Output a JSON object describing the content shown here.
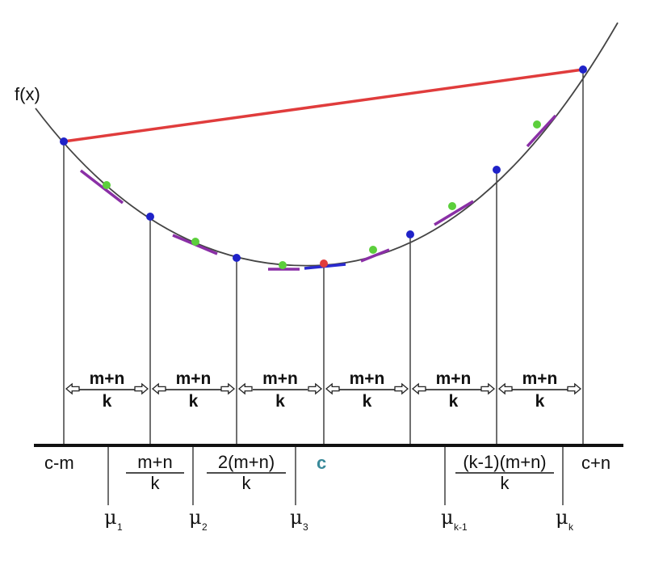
{
  "fx_label": "f(x)",
  "axis_labels": {
    "left": "c-m",
    "right": "c+n",
    "center": "c"
  },
  "axis_fractions": [
    {
      "num": "m+n",
      "den": "k"
    },
    {
      "num": "2(m+n)",
      "den": "k"
    },
    {
      "num": "(k-1)(m+n)",
      "den": "k"
    }
  ],
  "gap_fraction": {
    "num": "m+n",
    "den": "k"
  },
  "mu_labels": [
    {
      "base": "μ",
      "sub": "1"
    },
    {
      "base": "μ",
      "sub": "2"
    },
    {
      "base": "μ",
      "sub": "3"
    },
    {
      "base": "μ",
      "sub": "k-1"
    },
    {
      "base": "μ",
      "sub": "k"
    }
  ],
  "colors": {
    "curve": "#444444",
    "chord": "#e03c3c",
    "partition_point": "#1f22c8",
    "midpoint": "#5ccf3c",
    "tangent": "#8a2fa6",
    "center_point": "#e03c3c",
    "center_tangent": "#2a2ad0",
    "center_label": "#3a8a9a"
  }
}
